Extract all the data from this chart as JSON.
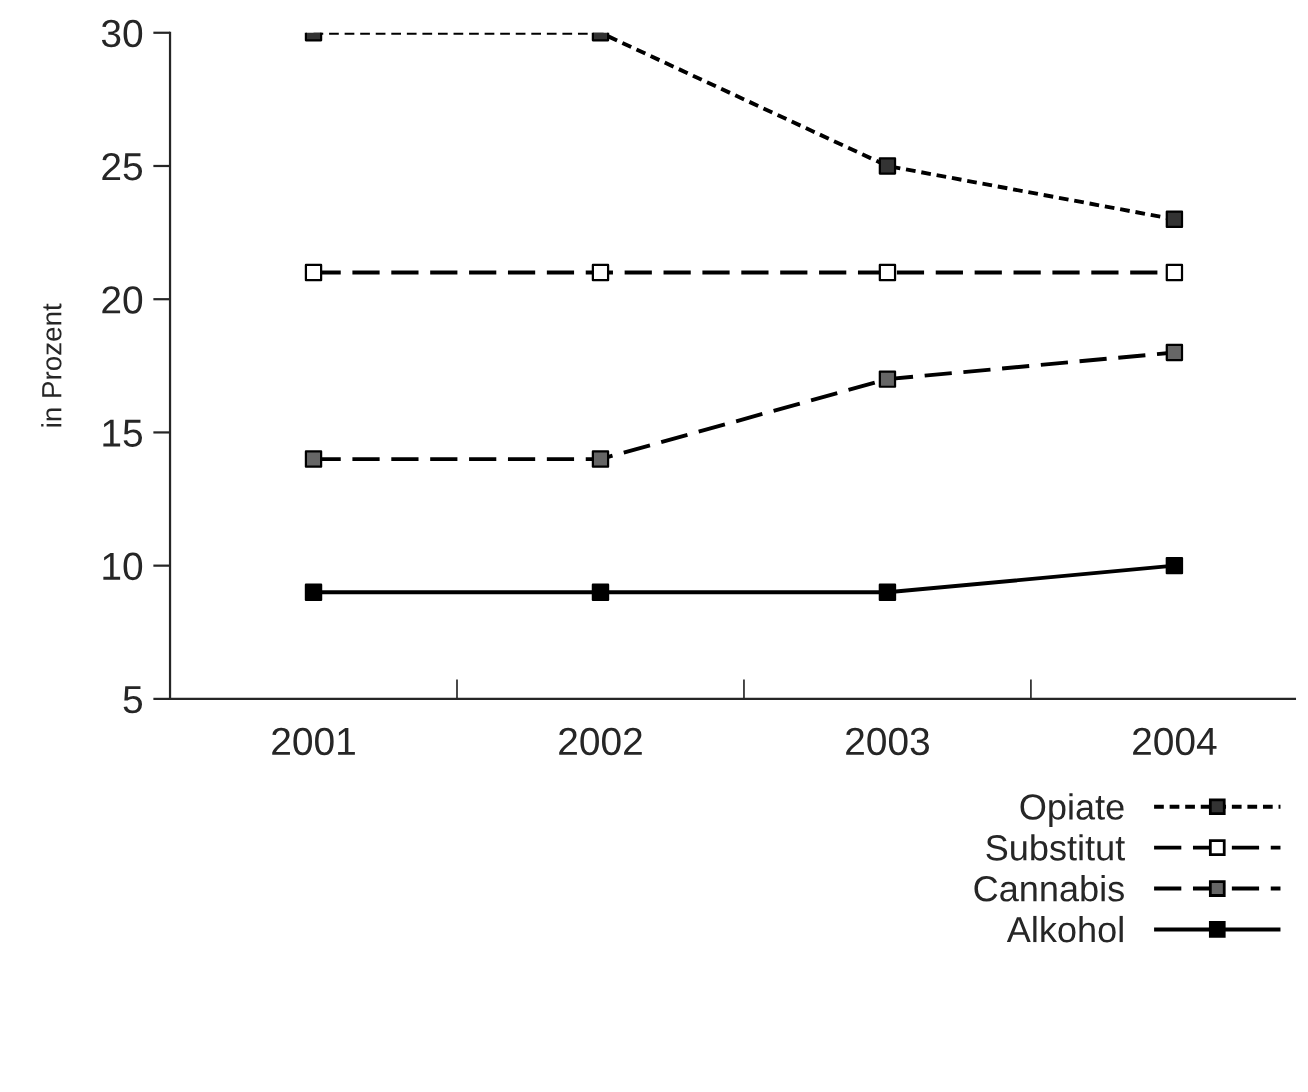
{
  "chart_data": {
    "type": "line",
    "ylabel": "in Prozent",
    "categories": [
      "2001",
      "2002",
      "2003",
      "2004"
    ],
    "series": [
      {
        "name": "Opiate",
        "color": "#000000",
        "colors": [
          "#333333",
          "#333333",
          "#333333",
          "#333333"
        ],
        "line_style": "dotted",
        "values": [
          30,
          30,
          25,
          23
        ]
      },
      {
        "name": "Substitut",
        "color": "#000000",
        "colors": [
          "#ffffff",
          "#ffffff",
          "#ffffff",
          "#ffffff"
        ],
        "line_style": "dashed",
        "values": [
          21,
          21,
          21,
          21
        ]
      },
      {
        "name": "Cannabis",
        "color": "#000000",
        "colors": [
          "#666666",
          "#666666",
          "#666666",
          "#666666"
        ],
        "line_style": "dashed",
        "values": [
          14,
          14,
          17,
          18
        ]
      },
      {
        "name": "Alkohol",
        "color": "#000000",
        "colors": [
          "#000000",
          "#000000",
          "#000000",
          "#000000"
        ],
        "line_style": "solid",
        "values": [
          9,
          9,
          9,
          10
        ]
      }
    ],
    "ylim": [
      5,
      30
    ],
    "yticks": [
      5,
      10,
      15,
      20,
      25,
      30
    ],
    "marker": "square",
    "grid": false,
    "legend": "bottom right"
  }
}
